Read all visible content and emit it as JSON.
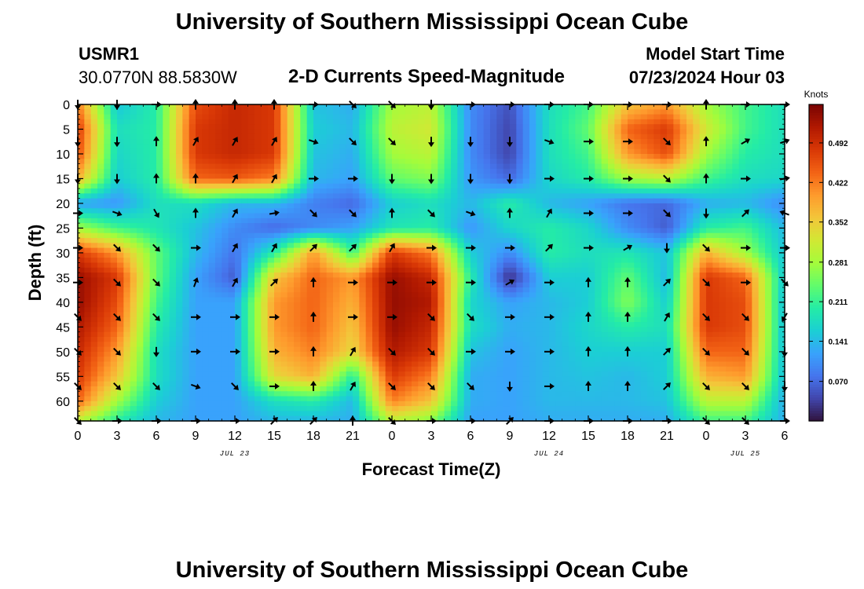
{
  "title": "University of Southern Mississippi Ocean Cube",
  "footer_title": "University of Southern Mississippi Ocean Cube",
  "station": {
    "id": "USMR1",
    "coords": "30.0770N  88.5830W"
  },
  "model": {
    "label": "Model Start Time",
    "start": "07/23/2024 Hour 03"
  },
  "subtitle": "2-D Currents Speed-Magnitude",
  "chart_data": {
    "type": "heatmap",
    "title": "2-D Currents Speed-Magnitude",
    "xlabel": "Forecast Time(Z)",
    "ylabel": "Depth (ft)",
    "x_hours_range": [
      0,
      54
    ],
    "y_depth_range_ft": [
      0,
      64
    ],
    "x_ticks": [
      {
        "h": 0,
        "label": "0"
      },
      {
        "h": 3,
        "label": "3"
      },
      {
        "h": 6,
        "label": "6"
      },
      {
        "h": 9,
        "label": "9"
      },
      {
        "h": 12,
        "label": "12"
      },
      {
        "h": 15,
        "label": "15"
      },
      {
        "h": 18,
        "label": "18"
      },
      {
        "h": 21,
        "label": "21"
      },
      {
        "h": 24,
        "label": "0"
      },
      {
        "h": 27,
        "label": "3"
      },
      {
        "h": 30,
        "label": "6"
      },
      {
        "h": 33,
        "label": "9"
      },
      {
        "h": 36,
        "label": "12"
      },
      {
        "h": 39,
        "label": "15"
      },
      {
        "h": 42,
        "label": "18"
      },
      {
        "h": 45,
        "label": "21"
      },
      {
        "h": 48,
        "label": "0"
      },
      {
        "h": 51,
        "label": "3"
      },
      {
        "h": 54,
        "label": "6"
      }
    ],
    "y_ticks": [
      0,
      5,
      10,
      15,
      20,
      25,
      30,
      35,
      40,
      45,
      50,
      55,
      60
    ],
    "date_labels": [
      {
        "h": 12,
        "label": "JUL 23"
      },
      {
        "h": 36,
        "label": "JUL 24"
      },
      {
        "h": 51,
        "label": "JUL 25"
      }
    ],
    "colorbar": {
      "unit": "Knots",
      "min": 0.0,
      "max": 0.56,
      "ticks": [
        "0.070",
        "0.141",
        "0.211",
        "0.281",
        "0.352",
        "0.422",
        "0.492"
      ],
      "colors": [
        "#30123b",
        "#4145ab",
        "#4675ed",
        "#39a2fc",
        "#1bcfd4",
        "#24eca6",
        "#61fc6c",
        "#a4fc3b",
        "#d1e834",
        "#f3c63a",
        "#fe9b2d",
        "#f36315",
        "#d93806",
        "#b11901",
        "#7a0403"
      ]
    },
    "speed_grid_hours": [
      0,
      3,
      6,
      9,
      12,
      15,
      18,
      21,
      24,
      27,
      30,
      33,
      36,
      39,
      42,
      45,
      48,
      51,
      54
    ],
    "speed_grid_depths_ft": [
      0,
      5,
      10,
      15,
      20,
      25,
      30,
      35,
      40,
      45,
      50,
      55,
      60,
      64
    ],
    "speed_knots": [
      [
        0.42,
        0.15,
        0.2,
        0.46,
        0.5,
        0.48,
        0.15,
        0.13,
        0.28,
        0.3,
        0.1,
        0.05,
        0.18,
        0.22,
        0.36,
        0.4,
        0.28,
        0.22,
        0.18
      ],
      [
        0.48,
        0.18,
        0.2,
        0.48,
        0.5,
        0.48,
        0.16,
        0.14,
        0.3,
        0.32,
        0.1,
        0.04,
        0.18,
        0.24,
        0.44,
        0.48,
        0.32,
        0.22,
        0.18
      ],
      [
        0.46,
        0.17,
        0.2,
        0.48,
        0.5,
        0.48,
        0.15,
        0.13,
        0.28,
        0.3,
        0.1,
        0.04,
        0.18,
        0.22,
        0.4,
        0.46,
        0.28,
        0.2,
        0.18
      ],
      [
        0.38,
        0.16,
        0.2,
        0.44,
        0.45,
        0.42,
        0.14,
        0.12,
        0.24,
        0.26,
        0.11,
        0.07,
        0.17,
        0.2,
        0.28,
        0.3,
        0.22,
        0.18,
        0.17
      ],
      [
        0.12,
        0.11,
        0.18,
        0.18,
        0.14,
        0.14,
        0.09,
        0.07,
        0.16,
        0.18,
        0.14,
        0.2,
        0.14,
        0.12,
        0.08,
        0.07,
        0.13,
        0.14,
        0.1
      ],
      [
        0.28,
        0.22,
        0.19,
        0.15,
        0.1,
        0.07,
        0.1,
        0.12,
        0.19,
        0.2,
        0.11,
        0.17,
        0.2,
        0.17,
        0.1,
        0.06,
        0.2,
        0.22,
        0.14
      ],
      [
        0.48,
        0.4,
        0.24,
        0.14,
        0.08,
        0.2,
        0.4,
        0.22,
        0.48,
        0.42,
        0.16,
        0.1,
        0.2,
        0.18,
        0.19,
        0.15,
        0.38,
        0.28,
        0.15
      ],
      [
        0.54,
        0.48,
        0.24,
        0.12,
        0.06,
        0.36,
        0.44,
        0.4,
        0.54,
        0.5,
        0.2,
        0.02,
        0.16,
        0.16,
        0.24,
        0.14,
        0.48,
        0.44,
        0.15
      ],
      [
        0.54,
        0.46,
        0.22,
        0.12,
        0.12,
        0.4,
        0.44,
        0.38,
        0.54,
        0.52,
        0.17,
        0.12,
        0.14,
        0.16,
        0.26,
        0.16,
        0.48,
        0.46,
        0.14
      ],
      [
        0.52,
        0.44,
        0.2,
        0.12,
        0.12,
        0.4,
        0.44,
        0.36,
        0.54,
        0.5,
        0.18,
        0.13,
        0.14,
        0.17,
        0.2,
        0.18,
        0.48,
        0.46,
        0.14
      ],
      [
        0.5,
        0.4,
        0.18,
        0.12,
        0.12,
        0.38,
        0.42,
        0.34,
        0.52,
        0.48,
        0.15,
        0.12,
        0.14,
        0.16,
        0.16,
        0.16,
        0.44,
        0.44,
        0.14
      ],
      [
        0.48,
        0.36,
        0.18,
        0.12,
        0.12,
        0.34,
        0.38,
        0.2,
        0.48,
        0.42,
        0.13,
        0.12,
        0.14,
        0.15,
        0.14,
        0.16,
        0.38,
        0.4,
        0.14
      ],
      [
        0.44,
        0.28,
        0.16,
        0.12,
        0.12,
        0.18,
        0.2,
        0.14,
        0.42,
        0.36,
        0.13,
        0.12,
        0.14,
        0.14,
        0.14,
        0.15,
        0.3,
        0.3,
        0.13
      ],
      [
        0.3,
        0.2,
        0.14,
        0.12,
        0.12,
        0.14,
        0.14,
        0.13,
        0.3,
        0.26,
        0.12,
        0.12,
        0.13,
        0.13,
        0.13,
        0.13,
        0.22,
        0.22,
        0.13
      ]
    ],
    "vector_columns_hours": [
      0,
      3,
      6,
      9,
      12,
      15,
      18,
      21,
      24,
      27,
      30,
      33,
      36,
      39,
      42,
      45,
      48,
      51,
      54
    ],
    "vector_rows_depth_ft": [
      0,
      7.5,
      15,
      22,
      29,
      36,
      43,
      50,
      57,
      64
    ],
    "vector_angles_deg": [
      [
        90,
        90,
        0,
        270,
        270,
        270,
        0,
        45,
        45,
        90,
        0,
        0,
        0,
        0,
        0,
        0,
        270,
        0,
        0
      ],
      [
        90,
        90,
        270,
        300,
        300,
        300,
        20,
        45,
        45,
        90,
        90,
        90,
        20,
        0,
        0,
        45,
        270,
        330,
        340
      ],
      [
        90,
        90,
        270,
        270,
        300,
        300,
        0,
        0,
        90,
        90,
        90,
        90,
        0,
        0,
        0,
        45,
        270,
        0,
        350
      ],
      [
        0,
        20,
        60,
        270,
        300,
        350,
        45,
        45,
        270,
        45,
        20,
        270,
        300,
        0,
        0,
        45,
        90,
        315,
        200
      ],
      [
        0,
        45,
        45,
        0,
        300,
        300,
        315,
        315,
        300,
        0,
        0,
        0,
        315,
        0,
        330,
        90,
        45,
        0,
        0
      ],
      [
        0,
        45,
        45,
        290,
        300,
        315,
        270,
        0,
        0,
        0,
        0,
        330,
        0,
        270,
        270,
        315,
        45,
        0,
        45
      ],
      [
        45,
        45,
        45,
        0,
        0,
        0,
        270,
        0,
        0,
        45,
        45,
        0,
        0,
        270,
        270,
        300,
        45,
        45,
        120
      ],
      [
        45,
        45,
        90,
        0,
        0,
        0,
        270,
        300,
        45,
        45,
        0,
        0,
        0,
        270,
        270,
        315,
        45,
        45,
        90
      ],
      [
        45,
        45,
        45,
        20,
        45,
        0,
        270,
        300,
        45,
        45,
        45,
        90,
        0,
        270,
        270,
        315,
        45,
        45,
        90
      ],
      [
        45,
        0,
        0,
        0,
        0,
        315,
        315,
        270,
        45,
        0,
        0,
        315,
        0,
        0,
        0,
        0,
        45,
        45,
        0
      ]
    ]
  }
}
